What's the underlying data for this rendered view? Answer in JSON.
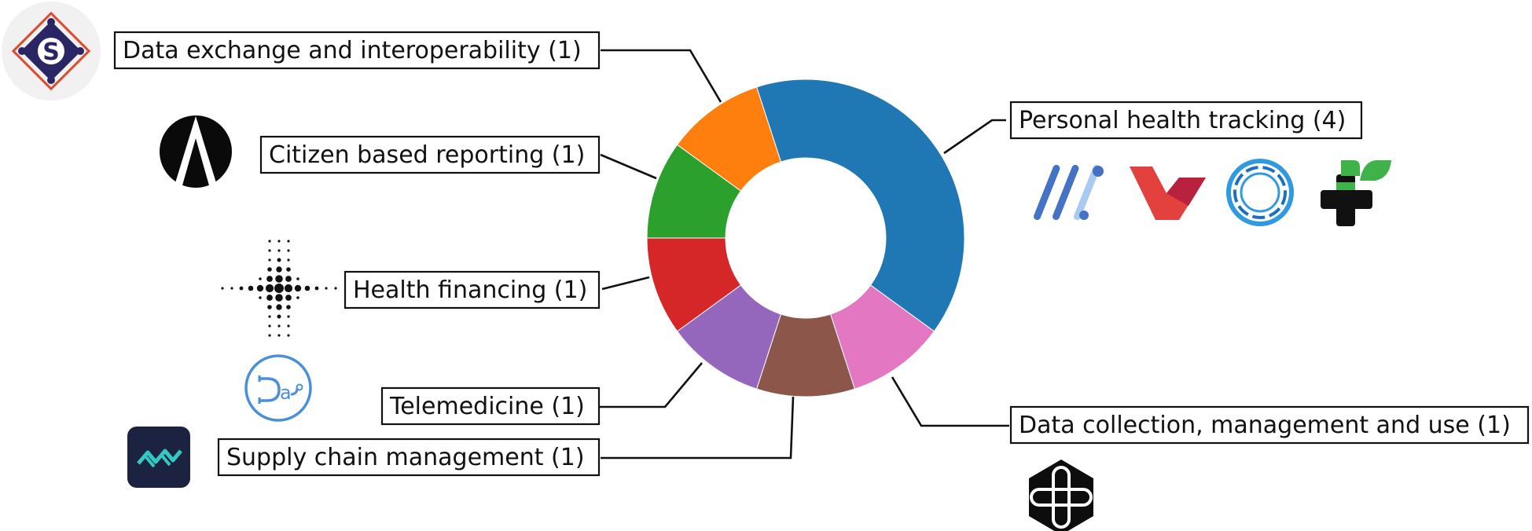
{
  "chart_data": {
    "type": "pie",
    "donut": true,
    "total": 10,
    "slices": [
      {
        "label": "Personal health tracking (4)",
        "value": 4,
        "color": "#1f77b4",
        "logos": [
          "mark-lines-logo",
          "red-v-logo",
          "blue-ring-logo",
          "green-black-cross-logo"
        ]
      },
      {
        "label": "Data collection, management and use (1)",
        "value": 1,
        "color": "#e377c2",
        "logos": [
          "hexagon-plus-logo"
        ]
      },
      {
        "label": "Supply chain management (1)",
        "value": 1,
        "color": "#8c564b",
        "logos": [
          "navy-square-waves-logo"
        ]
      },
      {
        "label": "Telemedicine (1)",
        "value": 1,
        "color": "#9467bd",
        "logos": [
          "stethoscope-da-logo"
        ]
      },
      {
        "label": "Health financing (1)",
        "value": 1,
        "color": "#d62728",
        "logos": [
          "dotted-cross-logo"
        ]
      },
      {
        "label": "Citizen based reporting (1)",
        "value": 1,
        "color": "#2ca02c",
        "logos": [
          "black-a-logo"
        ]
      },
      {
        "label": "Data exchange and interoperability (1)",
        "value": 1,
        "color": "#ff7f0e",
        "logos": [
          "diamond-s-logo"
        ]
      }
    ]
  }
}
